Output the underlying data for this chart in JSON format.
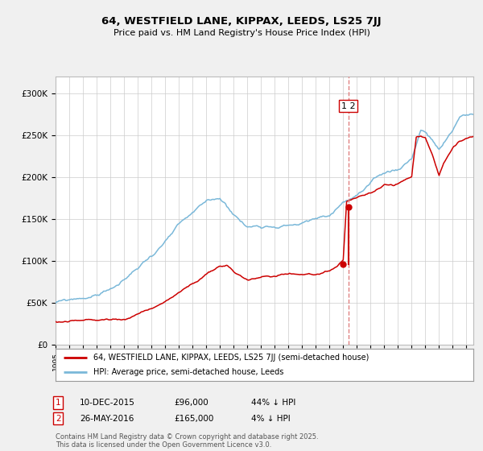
{
  "title1": "64, WESTFIELD LANE, KIPPAX, LEEDS, LS25 7JJ",
  "title2": "Price paid vs. HM Land Registry's House Price Index (HPI)",
  "legend_line1": "64, WESTFIELD LANE, KIPPAX, LEEDS, LS25 7JJ (semi-detached house)",
  "legend_line2": "HPI: Average price, semi-detached house, Leeds",
  "transaction1_date": "10-DEC-2015",
  "transaction1_price": 96000,
  "transaction1_hpi": "44% ↓ HPI",
  "transaction2_date": "26-MAY-2016",
  "transaction2_price": 165000,
  "transaction2_hpi": "4% ↓ HPI",
  "vline_date": 2016.38,
  "copyright": "Contains HM Land Registry data © Crown copyright and database right 2025.\nThis data is licensed under the Open Government Licence v3.0.",
  "hpi_color": "#7ab8d9",
  "price_color": "#cc0000",
  "vline_color": "#e08080",
  "background_color": "#f0f0f0",
  "plot_background": "#ffffff",
  "ylim_max": 320000,
  "xlim_start": 1995,
  "xlim_end": 2025.5
}
